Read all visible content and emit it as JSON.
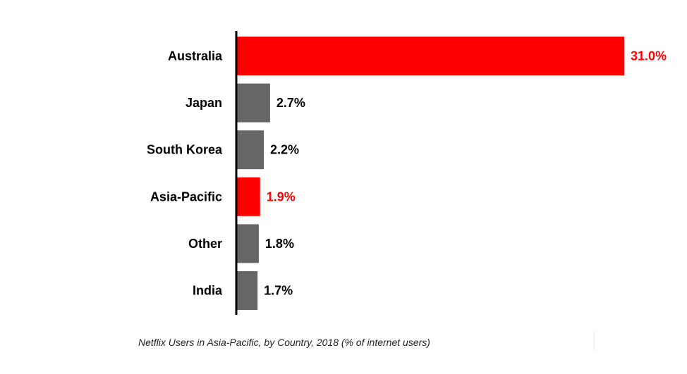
{
  "chart_data": {
    "type": "bar",
    "orientation": "horizontal",
    "categories": [
      "Australia",
      "Japan",
      "South Korea",
      "Asia-Pacific",
      "Other",
      "India"
    ],
    "values": [
      31.0,
      2.7,
      2.2,
      1.9,
      1.8,
      1.7
    ],
    "value_labels": [
      "31.0%",
      "2.7%",
      "2.2%",
      "1.9%",
      "1.8%",
      "1.7%"
    ],
    "highlighted": [
      true,
      false,
      false,
      true,
      false,
      false
    ],
    "colors": {
      "highlight": "#ff0000",
      "default": "#666666",
      "axis": "#000000"
    },
    "xlim": [
      0,
      31.0
    ],
    "grid": false,
    "caption": "Netflix Users in Asia-Pacific, by Country, 2018 (% of internet users)"
  }
}
